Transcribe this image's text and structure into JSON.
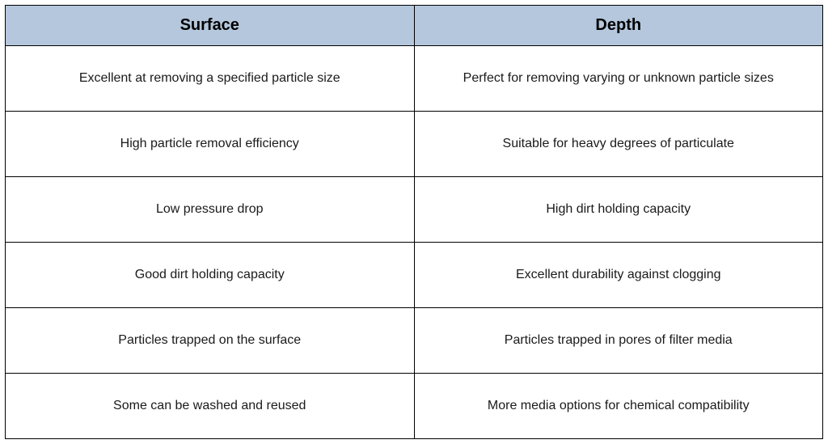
{
  "table": {
    "type": "table",
    "header_bg": "#b4c7dc",
    "border_color": "#000000",
    "cell_bg": "#ffffff",
    "header_fontsize": 20,
    "header_fontweight": 700,
    "cell_fontsize": 16,
    "cell_fontweight": 400,
    "text_color": "#000000",
    "columns": [
      "Surface",
      "Depth"
    ],
    "column_widths": [
      "50%",
      "50%"
    ],
    "header_row_height": 50,
    "body_row_height": 81,
    "rows": [
      [
        "Excellent at removing a specified particle size",
        "Perfect for removing varying or unknown particle sizes"
      ],
      [
        "High particle removal efficiency",
        "Suitable for heavy degrees of particulate"
      ],
      [
        "Low pressure drop",
        "High dirt holding capacity"
      ],
      [
        "Good dirt holding capacity",
        "Excellent durability against clogging"
      ],
      [
        "Particles trapped on the surface",
        "Particles trapped in pores of filter media"
      ],
      [
        "Some can be washed and reused",
        "More media options for chemical compatibility"
      ]
    ]
  }
}
